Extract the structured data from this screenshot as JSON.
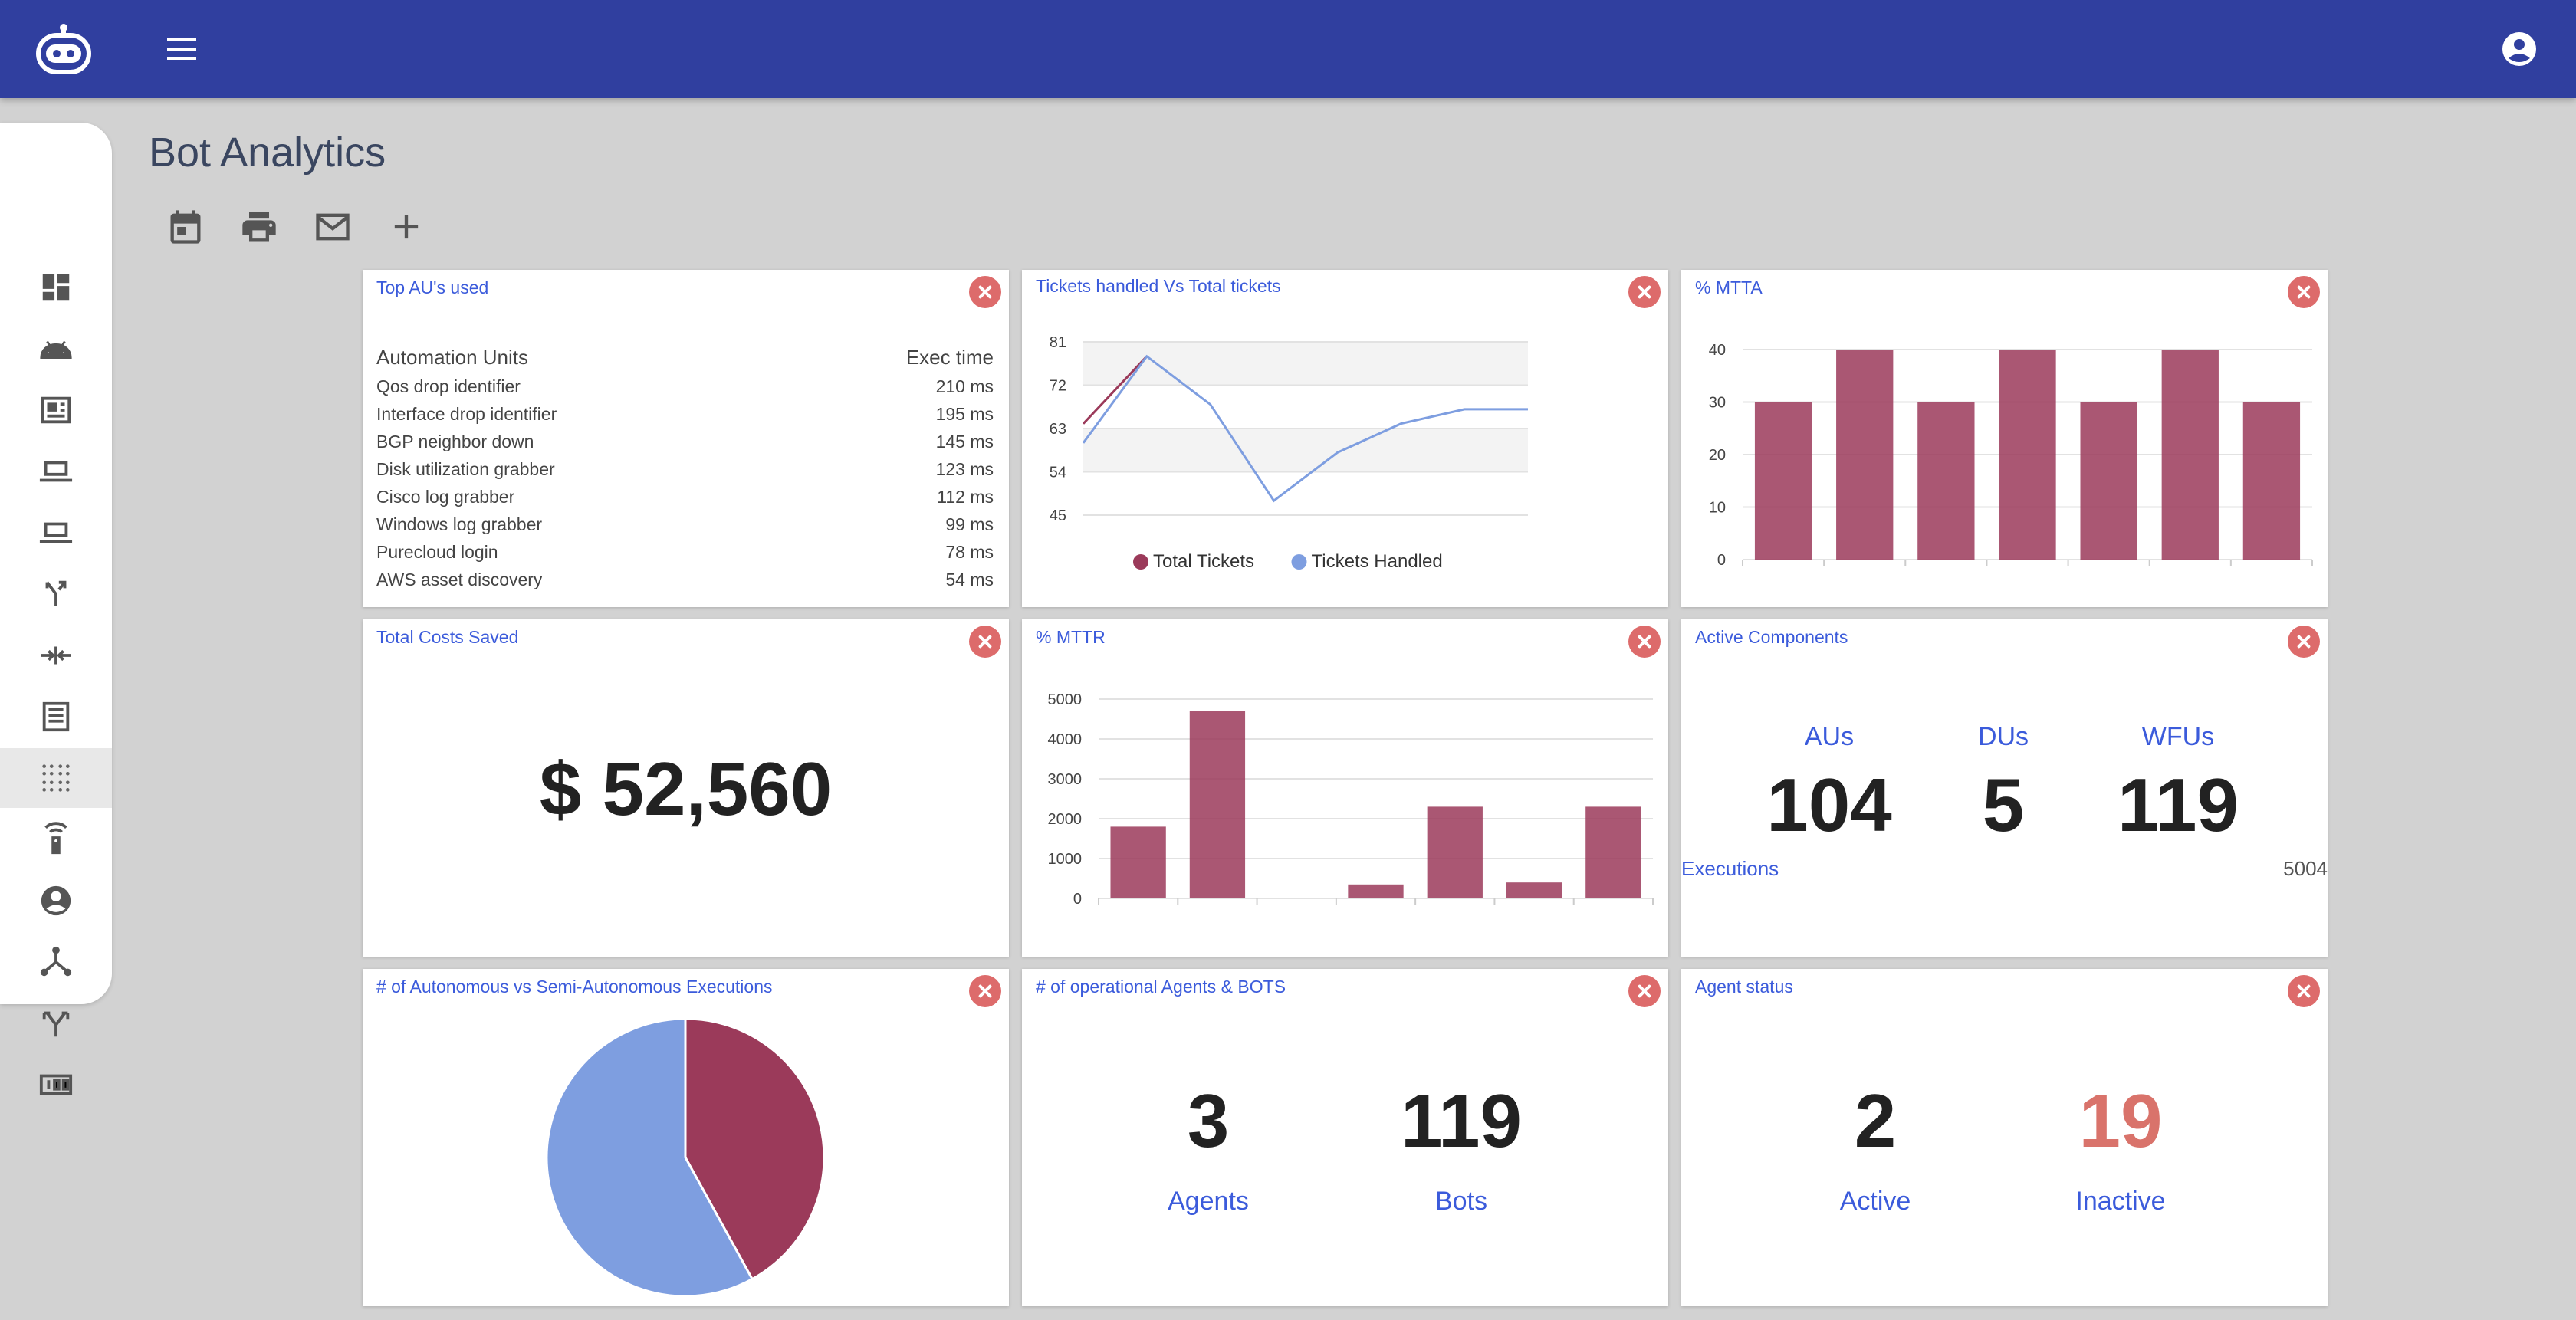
{
  "header": {
    "logo_icon": "robot-icon",
    "menu_icon": "hamburger-menu-icon",
    "account_icon": "account-circle-icon",
    "color": "#303f9f"
  },
  "sidebar": {
    "items": [
      {
        "icon": "dashboard-icon"
      },
      {
        "icon": "android-icon"
      },
      {
        "icon": "article-icon"
      },
      {
        "icon": "laptop-icon"
      },
      {
        "icon": "laptop-icon"
      },
      {
        "icon": "merge-icon"
      },
      {
        "icon": "compress-arrows-icon"
      },
      {
        "icon": "list-doc-icon"
      },
      {
        "icon": "grid-dots-icon",
        "active": true
      },
      {
        "icon": "remote-icon"
      },
      {
        "icon": "account-icon"
      },
      {
        "icon": "hub-icon"
      },
      {
        "icon": "fork-icon"
      },
      {
        "icon": "counter-icon"
      }
    ]
  },
  "page": {
    "title": "Bot Analytics"
  },
  "toolbar": {
    "icons": [
      "calendar-icon",
      "print-icon",
      "mail-icon",
      "add-icon"
    ]
  },
  "cards": {
    "top_aus": {
      "title": "Top AU's used",
      "col1": "Automation Units",
      "col2": "Exec time",
      "rows": [
        {
          "name": "Qos drop identifier",
          "time": "210 ms"
        },
        {
          "name": "Interface drop identifier",
          "time": "195 ms"
        },
        {
          "name": "BGP neighbor down",
          "time": "145 ms"
        },
        {
          "name": "Disk utilization grabber",
          "time": "123 ms"
        },
        {
          "name": "Cisco log grabber",
          "time": "112 ms"
        },
        {
          "name": "Windows log grabber",
          "time": "99 ms"
        },
        {
          "name": "Purecloud login",
          "time": "78 ms"
        },
        {
          "name": "AWS asset discovery",
          "time": "54 ms"
        }
      ]
    },
    "tickets": {
      "title": "Tickets handled Vs Total tickets"
    },
    "mtta": {
      "title": "% MTTA"
    },
    "costs": {
      "title": "Total Costs Saved",
      "value": "$ 52,560"
    },
    "mttr": {
      "title": "% MTTR"
    },
    "active_components": {
      "title": "Active Components",
      "items": [
        {
          "label": "AUs",
          "value": "104"
        },
        {
          "label": "DUs",
          "value": "5"
        },
        {
          "label": "WFUs",
          "value": "119"
        }
      ],
      "executions_label": "Executions",
      "executions_value": "5004"
    },
    "autonomous": {
      "title": "# of Autonomous vs Semi-Autonomous Executions"
    },
    "operational": {
      "title": "# of operational Agents & BOTS",
      "agents_value": "3",
      "agents_label": "Agents",
      "bots_value": "119",
      "bots_label": "Bots"
    },
    "agent_status": {
      "title": "Agent status",
      "active_value": "2",
      "active_label": "Active",
      "inactive_value": "19",
      "inactive_label": "Inactive",
      "inactive_color": "#d9736b"
    }
  },
  "chart_data": [
    {
      "type": "line",
      "title": "Tickets handled Vs Total tickets",
      "ylim": [
        45,
        81
      ],
      "yticks": [
        45,
        54,
        63,
        72,
        81
      ],
      "series": [
        {
          "name": "Total Tickets",
          "color": "#9b3a5a",
          "values": [
            64,
            78,
            null,
            null,
            null,
            null,
            null,
            null
          ]
        },
        {
          "name": "Tickets Handled",
          "color": "#7e9ee0",
          "values": [
            60,
            78,
            68,
            48,
            58,
            64,
            67,
            67
          ]
        }
      ],
      "legend": "bottom"
    },
    {
      "type": "bar",
      "title": "% MTTA",
      "ylim": [
        0,
        40
      ],
      "yticks": [
        0,
        10,
        20,
        30,
        40
      ],
      "values": [
        30,
        40,
        30,
        40,
        30,
        40,
        30
      ],
      "color": "#9b3a5a"
    },
    {
      "type": "bar",
      "title": "% MTTR",
      "ylim": [
        0,
        5000
      ],
      "yticks": [
        0,
        1000,
        2000,
        3000,
        4000,
        5000
      ],
      "values": [
        1800,
        4700,
        0,
        350,
        2300,
        400,
        2300
      ],
      "color": "#9b3a5a"
    },
    {
      "type": "pie",
      "title": "# of Autonomous vs Semi-Autonomous Executions",
      "values": [
        42,
        58
      ],
      "colors": [
        "#9b3a5a",
        "#7e9ee0"
      ]
    }
  ]
}
